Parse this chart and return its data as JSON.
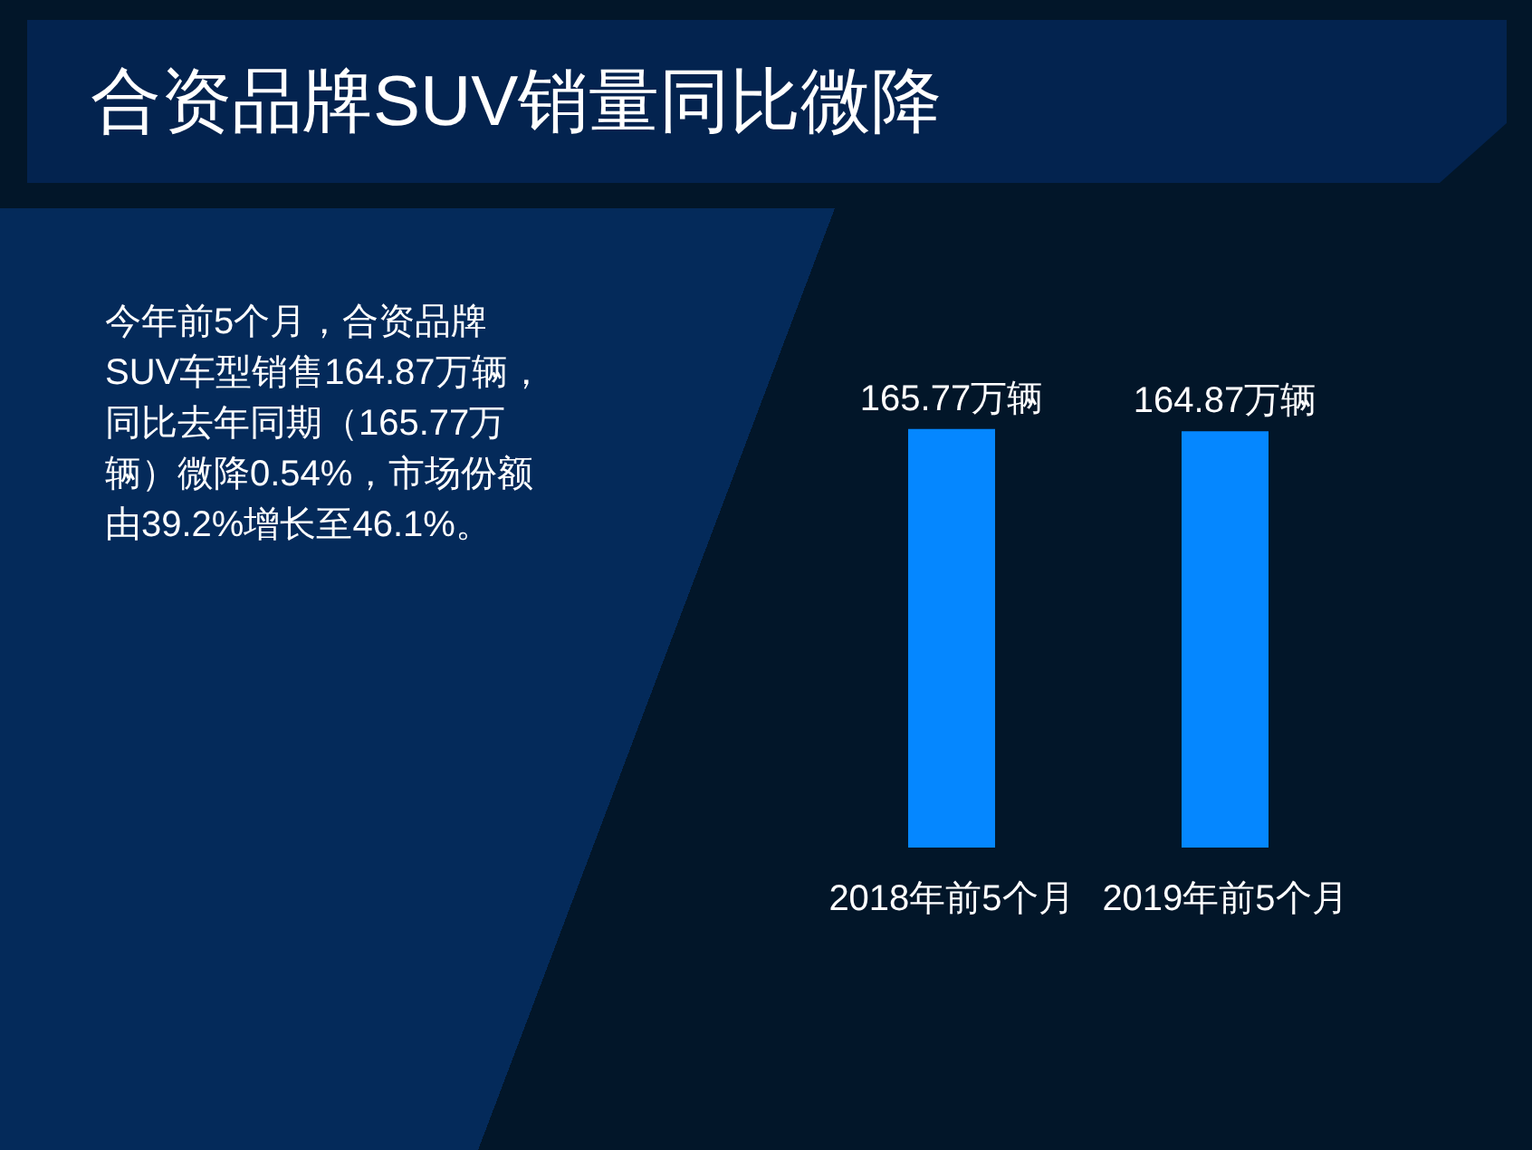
{
  "chart_data": {
    "type": "bar",
    "title": "合资品牌SUV销量同比微降",
    "categories": [
      "2018年前5个月",
      "2019年前5个月"
    ],
    "values": [
      165.77,
      164.87
    ],
    "value_labels": [
      "165.77万辆",
      "164.87万辆"
    ],
    "color": "#0587ff",
    "annotations": [
      "今年前5个月，合资品牌SUV车型销售164.87万辆，同比去年同期（165.77万辆）微降0.54%，市场份额由39.2%增长至46.1%。"
    ],
    "tick_labels": "x"
  }
}
